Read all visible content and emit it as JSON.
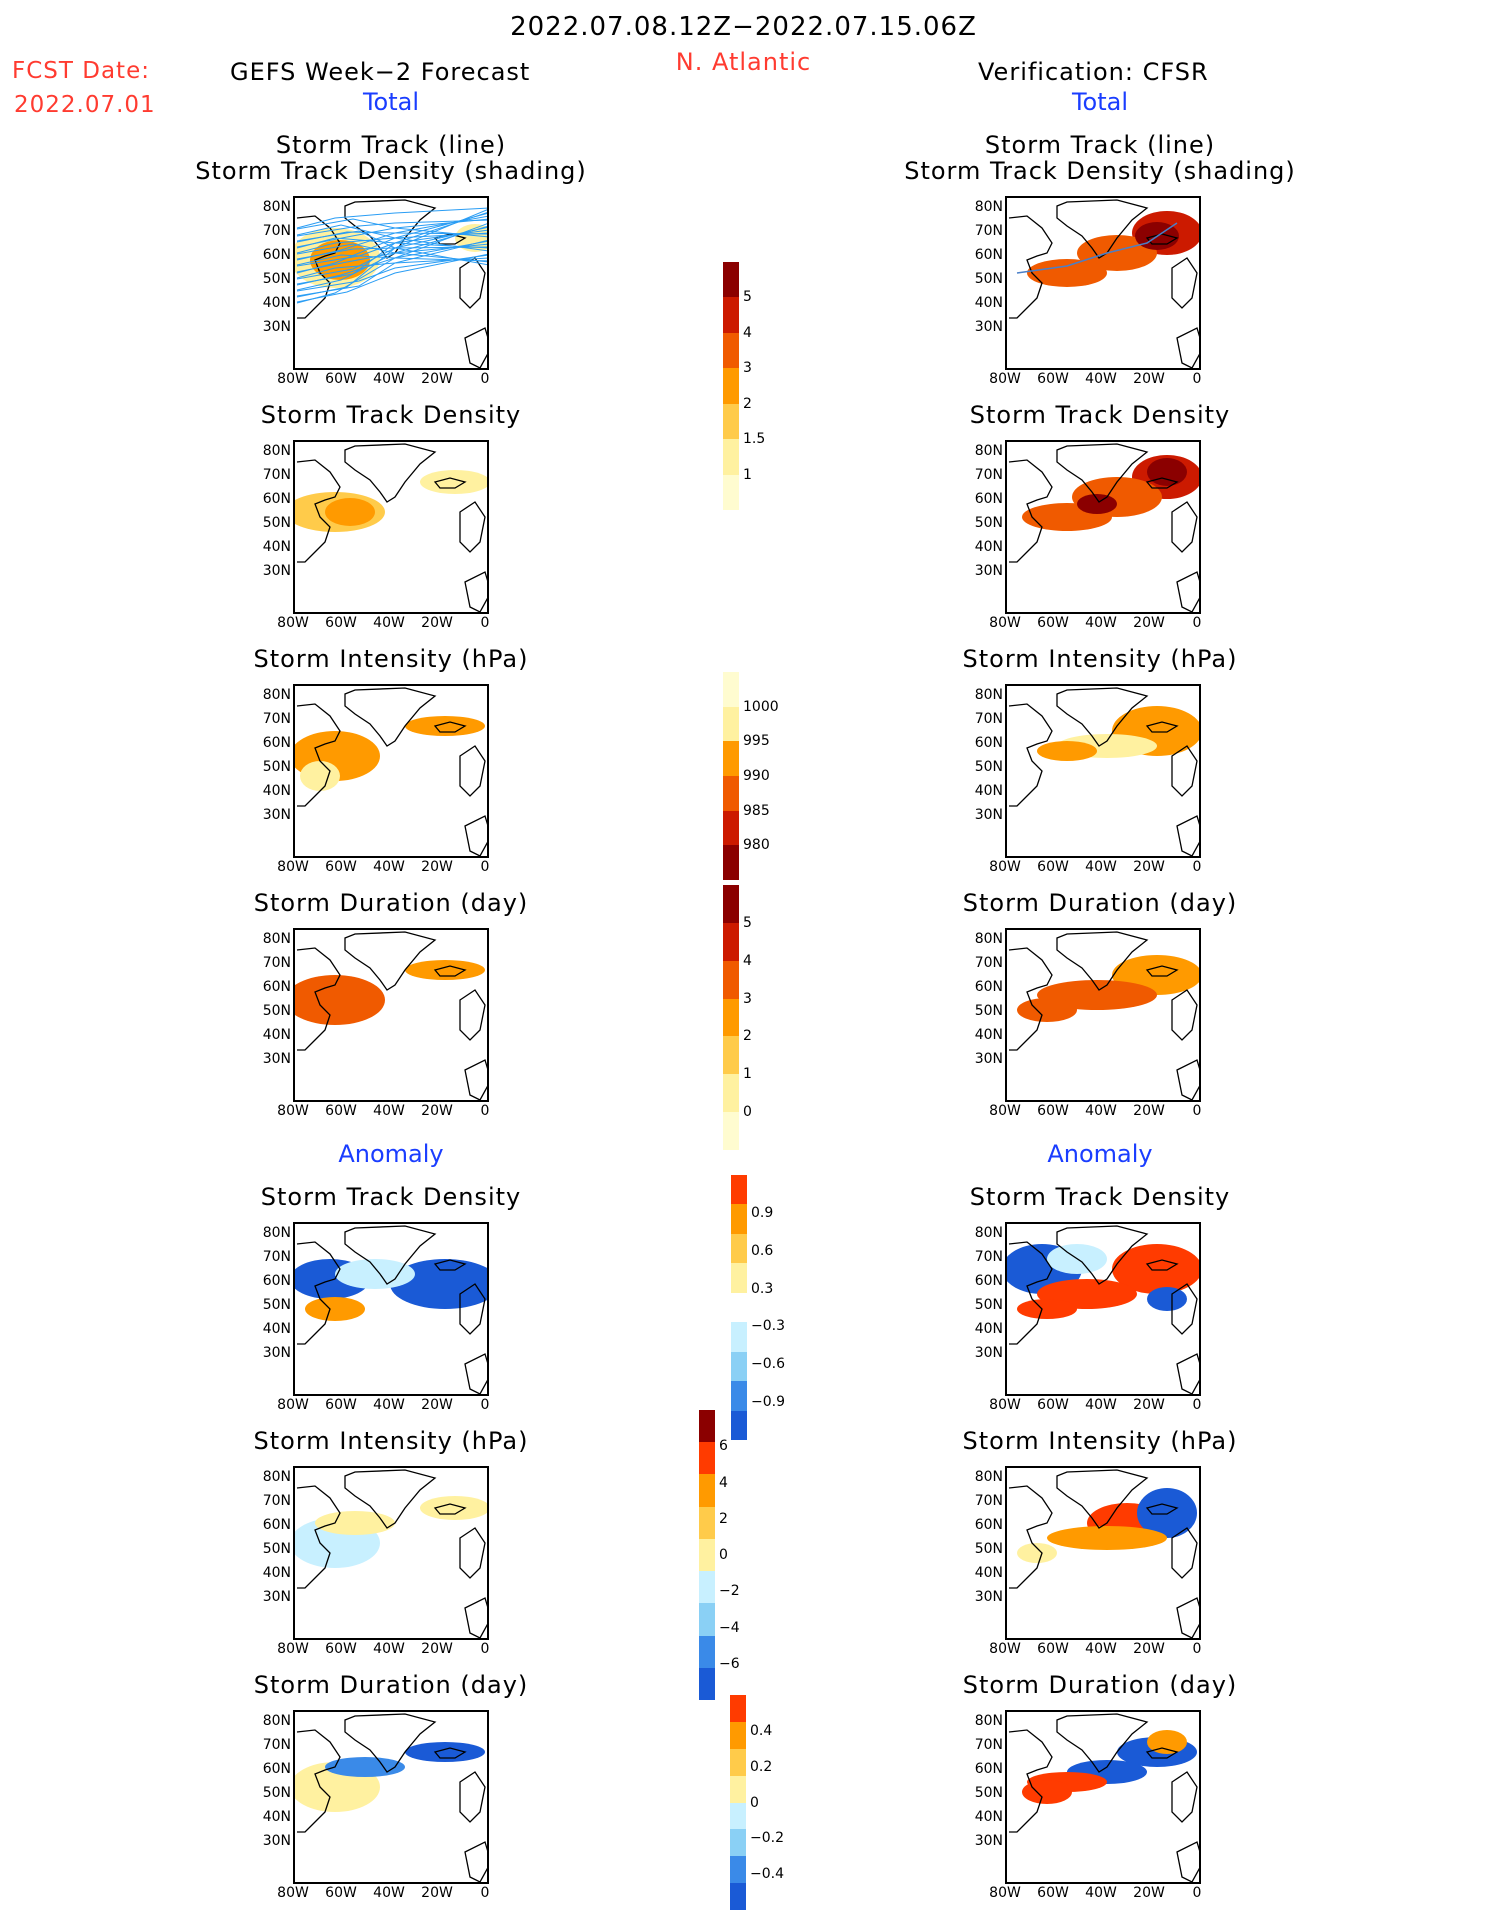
{
  "header": {
    "period": "2022.07.08.12Z−2022.07.15.06Z",
    "region": "N. Atlantic",
    "fcst_label": "FCST Date:",
    "fcst_date": "2022.07.01",
    "left_title": "GEFS Week−2 Forecast",
    "right_title": "Verification: CFSR",
    "left_section_total": "Total",
    "right_section_total": "Total",
    "left_section_anomaly": "Anomaly",
    "right_section_anomaly": "Anomaly"
  },
  "panels": {
    "track_line": "Storm Track (line)",
    "track_density_shading": "Storm Track Density (shading)",
    "track_density": "Storm Track Density",
    "intensity": "Storm Intensity (hPa)",
    "duration": "Storm Duration (day)"
  },
  "axes": {
    "lat_ticks": [
      "80N",
      "70N",
      "60N",
      "50N",
      "40N",
      "30N"
    ],
    "lon_ticks": [
      "80W",
      "60W",
      "40W",
      "20W",
      "0"
    ]
  },
  "colorbars": {
    "density": {
      "labels": [
        "5",
        "4",
        "3",
        "2",
        "1.5",
        "1"
      ],
      "colors": [
        "#8b0000",
        "#cc1a00",
        "#f05a00",
        "#ff9a00",
        "#ffcb4a",
        "#fff1a0",
        "#fffcd0"
      ]
    },
    "intensity": {
      "labels": [
        "1000",
        "995",
        "990",
        "985",
        "980"
      ],
      "colors": [
        "#fffcd0",
        "#fff1a0",
        "#ff9a00",
        "#f05a00",
        "#cc1a00",
        "#8b0000"
      ]
    },
    "duration": {
      "labels": [
        "5",
        "4",
        "3",
        "2",
        "1",
        "0"
      ],
      "colors": [
        "#8b0000",
        "#cc1a00",
        "#f05a00",
        "#ff9a00",
        "#ffcb4a",
        "#fff1a0",
        "#fffcd0"
      ]
    },
    "anom_density": {
      "labels": [
        "0.9",
        "0.6",
        "0.3",
        "−0.3",
        "−0.6",
        "−0.9"
      ],
      "colors": [
        "#ff3b00",
        "#ff9a00",
        "#ffcb4a",
        "#fff1a0",
        "#ffffff",
        "#c8f0ff",
        "#8ad0f5",
        "#3a8ae8",
        "#1a5ad6"
      ]
    },
    "anom_intensity": {
      "labels": [
        "6",
        "4",
        "2",
        "0",
        "−2",
        "−4",
        "−6"
      ],
      "colors": [
        "#8b0000",
        "#ff3b00",
        "#ff9a00",
        "#ffcb4a",
        "#fff1a0",
        "#c8f0ff",
        "#8ad0f5",
        "#3a8ae8",
        "#1a5ad6"
      ]
    },
    "anom_duration": {
      "labels": [
        "0.4",
        "0.2",
        "0",
        "−0.2",
        "−0.4"
      ],
      "colors": [
        "#ff3b00",
        "#ff9a00",
        "#ffcb4a",
        "#fff1a0",
        "#c8f0ff",
        "#8ad0f5",
        "#3a8ae8",
        "#1a5ad6"
      ]
    }
  }
}
